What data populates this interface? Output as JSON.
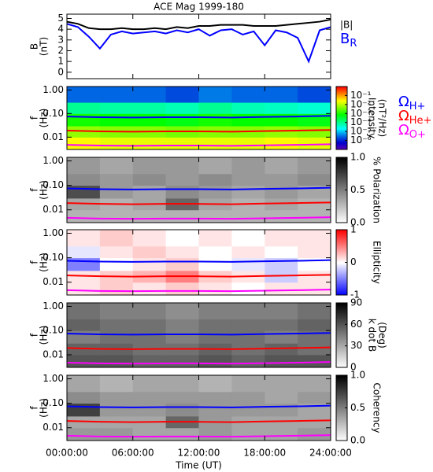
{
  "chart_data": [
    {
      "type": "line",
      "title": "ACE Mag 1999-180",
      "ylabel": [
        "B",
        "(nT)"
      ],
      "xlim": [
        0,
        24
      ],
      "ylim": [
        -0.6,
        5.4
      ],
      "yticks": [
        0,
        1,
        2,
        3,
        4,
        5
      ],
      "x": [
        0,
        1,
        2,
        3,
        4,
        5,
        6,
        7,
        8,
        9,
        10,
        11,
        12,
        13,
        14,
        15,
        16,
        17,
        18,
        19,
        20,
        21,
        22,
        23,
        24
      ],
      "series": [
        {
          "name": "|B|",
          "color": "#000000",
          "values": [
            4.7,
            4.5,
            4.1,
            4.0,
            4.0,
            4.1,
            4.0,
            4.0,
            4.1,
            4.0,
            4.2,
            4.1,
            4.3,
            4.3,
            4.4,
            4.4,
            4.4,
            4.3,
            4.3,
            4.3,
            4.4,
            4.5,
            4.6,
            4.7,
            4.9
          ]
        },
        {
          "name": "BR",
          "color": "#0000ff",
          "values": [
            4.5,
            4.2,
            3.3,
            2.2,
            3.5,
            3.8,
            3.6,
            3.7,
            3.8,
            3.6,
            3.9,
            3.7,
            4.0,
            3.4,
            3.9,
            4.0,
            3.5,
            3.8,
            2.5,
            3.9,
            3.7,
            3.2,
            1.0,
            3.9,
            4.2
          ]
        }
      ]
    },
    {
      "type": "spectrogram",
      "ylabel": [
        "f",
        "(Hz)"
      ],
      "xlim": [
        0,
        24
      ],
      "ylim": [
        0.003,
        1.4
      ],
      "log_y": true,
      "yticks": [
        0.01,
        {
          "value": 0.1,
          "label": "0.10"
        },
        {
          "value": 1,
          "label": "1.00"
        }
      ],
      "xbins": [
        0,
        3,
        6,
        9,
        12,
        15,
        18,
        21,
        24
      ],
      "fbins": [
        0.003,
        0.01,
        0.03,
        0.1,
        0.3,
        1.4
      ],
      "z": [
        [
          0.03,
          0.02,
          0.02,
          0.02,
          0.02,
          0.02,
          0.03,
          0.02
        ],
        [
          0.006,
          0.005,
          0.005,
          0.004,
          0.005,
          0.005,
          0.006,
          0.005
        ],
        [
          0.001,
          0.0008,
          0.0008,
          0.0006,
          0.001,
          0.0008,
          0.0008,
          0.0006
        ],
        [
          0.0001,
          8e-05,
          8e-05,
          6e-05,
          0.0001,
          6e-05,
          5e-05,
          4e-05
        ],
        [
          3e-06,
          3e-06,
          3e-06,
          2e-06,
          4e-06,
          3e-06,
          3e-06,
          2e-06
        ]
      ],
      "colormap": "rainbow",
      "zlim": [
        1e-07,
        1
      ],
      "log_z": true,
      "zticks": [
        {
          "value": 0.1,
          "label": "10⁻¹"
        },
        {
          "value": 0.01,
          "label": "10⁻²"
        },
        {
          "value": 0.001,
          "label": "10⁻³"
        },
        {
          "value": 0.0001,
          "label": "10⁻⁴"
        },
        {
          "value": 1e-05,
          "label": "10⁻⁵"
        },
        {
          "value": 1e-06,
          "label": "10⁻⁶"
        }
      ],
      "zlabel": [
        "Intensity",
        "(nT²/Hz)"
      ],
      "x": [
        0,
        3,
        6,
        9,
        12,
        15,
        18,
        21,
        24
      ],
      "series": [
        {
          "name": "ΩH+",
          "color": "#0000ff",
          "values": [
            0.075,
            0.07,
            0.068,
            0.07,
            0.07,
            0.068,
            0.072,
            0.075,
            0.08
          ]
        },
        {
          "name": "ΩHe+",
          "color": "#ff0000",
          "values": [
            0.019,
            0.0175,
            0.017,
            0.0175,
            0.0175,
            0.017,
            0.018,
            0.019,
            0.02
          ]
        },
        {
          "name": "ΩO+",
          "color": "#ff00ff",
          "values": [
            0.0047,
            0.0044,
            0.0043,
            0.0044,
            0.0044,
            0.0043,
            0.0045,
            0.0047,
            0.005
          ]
        }
      ]
    },
    {
      "type": "spectrogram",
      "ylabel": [
        "f",
        "(Hz)"
      ],
      "xlim": [
        0,
        24
      ],
      "ylim": [
        0.003,
        1.4
      ],
      "log_y": true,
      "yticks": [
        0.01,
        {
          "value": 0.1,
          "label": "0.10"
        },
        {
          "value": 1,
          "label": "1.00"
        }
      ],
      "xbins": [
        0,
        3,
        6,
        9,
        12,
        15,
        18,
        21,
        24
      ],
      "fbins": [
        0.003,
        0.01,
        0.03,
        0.1,
        0.3,
        1.4
      ],
      "z": [
        [
          0.3,
          0.3,
          0.3,
          0.3,
          0.3,
          0.3,
          0.3,
          0.3
        ],
        [
          0.35,
          0.3,
          0.35,
          0.6,
          0.35,
          0.3,
          0.35,
          0.3
        ],
        [
          0.7,
          0.4,
          0.35,
          0.45,
          0.4,
          0.35,
          0.4,
          0.35
        ],
        [
          0.45,
          0.4,
          0.45,
          0.4,
          0.45,
          0.4,
          0.4,
          0.45
        ],
        [
          0.4,
          0.35,
          0.4,
          0.4,
          0.35,
          0.4,
          0.35,
          0.4
        ]
      ],
      "colormap": "grey",
      "zlim": [
        0,
        1
      ],
      "zticks": [
        {
          "value": 0,
          "label": "0.0"
        },
        {
          "value": 0.5,
          "label": "0.5"
        },
        {
          "value": 1,
          "label": "1.0"
        }
      ],
      "zlabel": [
        "% Polarization"
      ]
    },
    {
      "type": "spectrogram",
      "ylabel": [
        "f",
        "(Hz)"
      ],
      "xlim": [
        0,
        24
      ],
      "ylim": [
        0.003,
        1.4
      ],
      "log_y": true,
      "yticks": [
        0.01,
        {
          "value": 0.1,
          "label": "0.10"
        },
        {
          "value": 1,
          "label": "1.00"
        }
      ],
      "xbins": [
        0,
        3,
        6,
        9,
        12,
        15,
        18,
        21,
        24
      ],
      "fbins": [
        0.003,
        0.01,
        0.03,
        0.1,
        0.3,
        1.4
      ],
      "z": [
        [
          0.1,
          0.2,
          0.1,
          0.2,
          0.1,
          0,
          0.1,
          0.1
        ],
        [
          0.1,
          0.2,
          0.3,
          0.5,
          0.2,
          0.1,
          -0.2,
          0.1
        ],
        [
          -0.5,
          0,
          0.1,
          0.2,
          0,
          -0.1,
          -0.2,
          0
        ],
        [
          -0.1,
          0.1,
          0.2,
          0.1,
          0,
          0.1,
          0,
          0.1
        ],
        [
          0.1,
          0.2,
          0.1,
          0,
          0.1,
          0,
          0.1,
          0.1
        ]
      ],
      "colormap": "bwr",
      "zlim": [
        -1,
        1
      ],
      "zticks": [
        -1,
        0,
        1
      ],
      "zlabel": [
        "Ellipticity"
      ]
    },
    {
      "type": "spectrogram",
      "ylabel": [
        "f",
        "(Hz)"
      ],
      "xlim": [
        0,
        24
      ],
      "ylim": [
        0.003,
        1.4
      ],
      "log_y": true,
      "yticks": [
        0.01,
        {
          "value": 0.1,
          "label": "0.10"
        },
        {
          "value": 1,
          "label": "1.00"
        }
      ],
      "xbins": [
        0,
        3,
        6,
        9,
        12,
        15,
        18,
        21,
        24
      ],
      "fbins": [
        0.003,
        0.01,
        0.03,
        0.1,
        0.3,
        1.4
      ],
      "z": [
        [
          60,
          60,
          55,
          55,
          60,
          55,
          60,
          60
        ],
        [
          55,
          55,
          50,
          50,
          55,
          50,
          55,
          50
        ],
        [
          45,
          50,
          50,
          45,
          50,
          50,
          45,
          50
        ],
        [
          55,
          50,
          50,
          45,
          50,
          50,
          50,
          55
        ],
        [
          50,
          45,
          45,
          40,
          45,
          45,
          45,
          50
        ]
      ],
      "colormap": "grey",
      "zlim": [
        0,
        90
      ],
      "zticks": [
        0,
        30,
        60,
        90
      ],
      "zlabel": [
        "k dot B",
        "(Deg)"
      ]
    },
    {
      "type": "spectrogram",
      "ylabel": [
        "f",
        "(Hz)"
      ],
      "xlim": [
        0,
        24
      ],
      "ylim": [
        0.003,
        1.4
      ],
      "log_y": true,
      "yticks": [
        0.01,
        {
          "value": 0.1,
          "label": "0.10"
        },
        {
          "value": 1,
          "label": "1.00"
        }
      ],
      "xbins": [
        0,
        3,
        6,
        9,
        12,
        15,
        18,
        21,
        24
      ],
      "fbins": [
        0.003,
        0.01,
        0.03,
        0.1,
        0.3,
        1.4
      ],
      "z": [
        [
          0.4,
          0.4,
          0.35,
          0.35,
          0.4,
          0.35,
          0.35,
          0.4
        ],
        [
          0.35,
          0.35,
          0.35,
          0.6,
          0.4,
          0.35,
          0.35,
          0.35
        ],
        [
          0.75,
          0.4,
          0.4,
          0.45,
          0.4,
          0.4,
          0.4,
          0.35
        ],
        [
          0.45,
          0.4,
          0.4,
          0.4,
          0.4,
          0.4,
          0.35,
          0.4
        ],
        [
          0.35,
          0.3,
          0.35,
          0.35,
          0.3,
          0.35,
          0.35,
          0.35
        ]
      ],
      "colormap": "grey",
      "zlim": [
        0,
        1
      ],
      "zticks": [
        {
          "value": 0,
          "label": "0.0"
        },
        {
          "value": 0.5,
          "label": "0.5"
        },
        {
          "value": 1,
          "label": "1.0"
        }
      ],
      "zlabel": [
        "Coherency"
      ],
      "xticks": [
        {
          "value": 0,
          "label": "00:00:00"
        },
        {
          "value": 6,
          "label": "06:00:00"
        },
        {
          "value": 12,
          "label": "12:00:00"
        },
        {
          "value": 18,
          "label": "18:00:00"
        },
        {
          "value": 24,
          "label": "24:00:00"
        }
      ],
      "xlabel": "Time (UT)"
    }
  ]
}
